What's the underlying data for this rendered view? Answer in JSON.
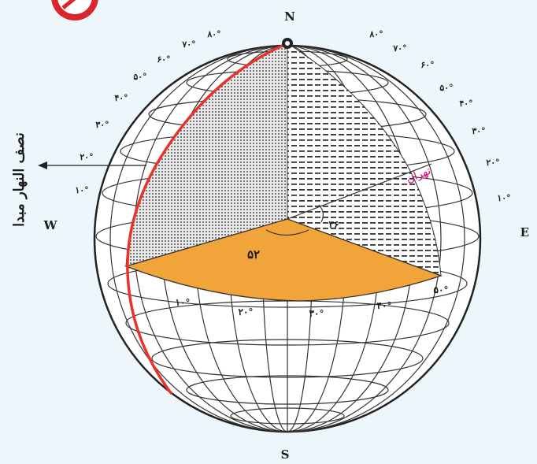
{
  "diagram": {
    "north_label": "N",
    "south_label": "S",
    "east_label": "E",
    "west_label": "W",
    "meridian_label": "نصف النهار مبدا",
    "city_label": "تهران",
    "angle_longitude_label": "۵۲",
    "angle_latitude_label": "۳۶",
    "left_latitude_labels": [
      "۱۰°",
      "۲۰°",
      "۳۰°",
      "۴۰°",
      "۵۰°",
      "۶۰°",
      "۷۰°",
      "۸۰°"
    ],
    "right_latitude_labels": [
      "۸۰°",
      "۷۰°",
      "۶۰°",
      "۵۰°",
      "۴۰°",
      "۳۰°",
      "۲۰°",
      "۱۰°"
    ],
    "longitude_labels": [
      "۱۰°",
      "۲۰°",
      "۳۰°",
      "۴۰°",
      "۵۰°"
    ],
    "colors": {
      "equatorial_plane": "#f0a43a",
      "prime_meridian": "#e8332a",
      "city_label": "#e6007e",
      "badge": "#d9262c"
    }
  }
}
